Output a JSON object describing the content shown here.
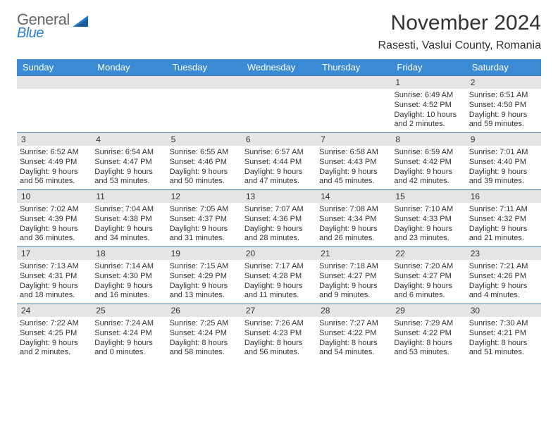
{
  "logo": {
    "line1": "General",
    "line2": "Blue"
  },
  "title": "November 2024",
  "location": "Rasesti, Vaslui County, Romania",
  "colors": {
    "header_bg": "#3b8bd4",
    "header_text": "#ffffff",
    "day_num_bg": "#e5e5e5",
    "week_border": "#4a7ba8",
    "text": "#333333",
    "logo_gray": "#666666",
    "logo_blue": "#2a7fc9"
  },
  "dow": [
    "Sunday",
    "Monday",
    "Tuesday",
    "Wednesday",
    "Thursday",
    "Friday",
    "Saturday"
  ],
  "weeks": [
    [
      {
        "n": "",
        "sr": "",
        "ss": "",
        "dl": ""
      },
      {
        "n": "",
        "sr": "",
        "ss": "",
        "dl": ""
      },
      {
        "n": "",
        "sr": "",
        "ss": "",
        "dl": ""
      },
      {
        "n": "",
        "sr": "",
        "ss": "",
        "dl": ""
      },
      {
        "n": "",
        "sr": "",
        "ss": "",
        "dl": ""
      },
      {
        "n": "1",
        "sr": "Sunrise: 6:49 AM",
        "ss": "Sunset: 4:52 PM",
        "dl": "Daylight: 10 hours and 2 minutes."
      },
      {
        "n": "2",
        "sr": "Sunrise: 6:51 AM",
        "ss": "Sunset: 4:50 PM",
        "dl": "Daylight: 9 hours and 59 minutes."
      }
    ],
    [
      {
        "n": "3",
        "sr": "Sunrise: 6:52 AM",
        "ss": "Sunset: 4:49 PM",
        "dl": "Daylight: 9 hours and 56 minutes."
      },
      {
        "n": "4",
        "sr": "Sunrise: 6:54 AM",
        "ss": "Sunset: 4:47 PM",
        "dl": "Daylight: 9 hours and 53 minutes."
      },
      {
        "n": "5",
        "sr": "Sunrise: 6:55 AM",
        "ss": "Sunset: 4:46 PM",
        "dl": "Daylight: 9 hours and 50 minutes."
      },
      {
        "n": "6",
        "sr": "Sunrise: 6:57 AM",
        "ss": "Sunset: 4:44 PM",
        "dl": "Daylight: 9 hours and 47 minutes."
      },
      {
        "n": "7",
        "sr": "Sunrise: 6:58 AM",
        "ss": "Sunset: 4:43 PM",
        "dl": "Daylight: 9 hours and 45 minutes."
      },
      {
        "n": "8",
        "sr": "Sunrise: 6:59 AM",
        "ss": "Sunset: 4:42 PM",
        "dl": "Daylight: 9 hours and 42 minutes."
      },
      {
        "n": "9",
        "sr": "Sunrise: 7:01 AM",
        "ss": "Sunset: 4:40 PM",
        "dl": "Daylight: 9 hours and 39 minutes."
      }
    ],
    [
      {
        "n": "10",
        "sr": "Sunrise: 7:02 AM",
        "ss": "Sunset: 4:39 PM",
        "dl": "Daylight: 9 hours and 36 minutes."
      },
      {
        "n": "11",
        "sr": "Sunrise: 7:04 AM",
        "ss": "Sunset: 4:38 PM",
        "dl": "Daylight: 9 hours and 34 minutes."
      },
      {
        "n": "12",
        "sr": "Sunrise: 7:05 AM",
        "ss": "Sunset: 4:37 PM",
        "dl": "Daylight: 9 hours and 31 minutes."
      },
      {
        "n": "13",
        "sr": "Sunrise: 7:07 AM",
        "ss": "Sunset: 4:36 PM",
        "dl": "Daylight: 9 hours and 28 minutes."
      },
      {
        "n": "14",
        "sr": "Sunrise: 7:08 AM",
        "ss": "Sunset: 4:34 PM",
        "dl": "Daylight: 9 hours and 26 minutes."
      },
      {
        "n": "15",
        "sr": "Sunrise: 7:10 AM",
        "ss": "Sunset: 4:33 PM",
        "dl": "Daylight: 9 hours and 23 minutes."
      },
      {
        "n": "16",
        "sr": "Sunrise: 7:11 AM",
        "ss": "Sunset: 4:32 PM",
        "dl": "Daylight: 9 hours and 21 minutes."
      }
    ],
    [
      {
        "n": "17",
        "sr": "Sunrise: 7:13 AM",
        "ss": "Sunset: 4:31 PM",
        "dl": "Daylight: 9 hours and 18 minutes."
      },
      {
        "n": "18",
        "sr": "Sunrise: 7:14 AM",
        "ss": "Sunset: 4:30 PM",
        "dl": "Daylight: 9 hours and 16 minutes."
      },
      {
        "n": "19",
        "sr": "Sunrise: 7:15 AM",
        "ss": "Sunset: 4:29 PM",
        "dl": "Daylight: 9 hours and 13 minutes."
      },
      {
        "n": "20",
        "sr": "Sunrise: 7:17 AM",
        "ss": "Sunset: 4:28 PM",
        "dl": "Daylight: 9 hours and 11 minutes."
      },
      {
        "n": "21",
        "sr": "Sunrise: 7:18 AM",
        "ss": "Sunset: 4:27 PM",
        "dl": "Daylight: 9 hours and 9 minutes."
      },
      {
        "n": "22",
        "sr": "Sunrise: 7:20 AM",
        "ss": "Sunset: 4:27 PM",
        "dl": "Daylight: 9 hours and 6 minutes."
      },
      {
        "n": "23",
        "sr": "Sunrise: 7:21 AM",
        "ss": "Sunset: 4:26 PM",
        "dl": "Daylight: 9 hours and 4 minutes."
      }
    ],
    [
      {
        "n": "24",
        "sr": "Sunrise: 7:22 AM",
        "ss": "Sunset: 4:25 PM",
        "dl": "Daylight: 9 hours and 2 minutes."
      },
      {
        "n": "25",
        "sr": "Sunrise: 7:24 AM",
        "ss": "Sunset: 4:24 PM",
        "dl": "Daylight: 9 hours and 0 minutes."
      },
      {
        "n": "26",
        "sr": "Sunrise: 7:25 AM",
        "ss": "Sunset: 4:24 PM",
        "dl": "Daylight: 8 hours and 58 minutes."
      },
      {
        "n": "27",
        "sr": "Sunrise: 7:26 AM",
        "ss": "Sunset: 4:23 PM",
        "dl": "Daylight: 8 hours and 56 minutes."
      },
      {
        "n": "28",
        "sr": "Sunrise: 7:27 AM",
        "ss": "Sunset: 4:22 PM",
        "dl": "Daylight: 8 hours and 54 minutes."
      },
      {
        "n": "29",
        "sr": "Sunrise: 7:29 AM",
        "ss": "Sunset: 4:22 PM",
        "dl": "Daylight: 8 hours and 53 minutes."
      },
      {
        "n": "30",
        "sr": "Sunrise: 7:30 AM",
        "ss": "Sunset: 4:21 PM",
        "dl": "Daylight: 8 hours and 51 minutes."
      }
    ]
  ]
}
